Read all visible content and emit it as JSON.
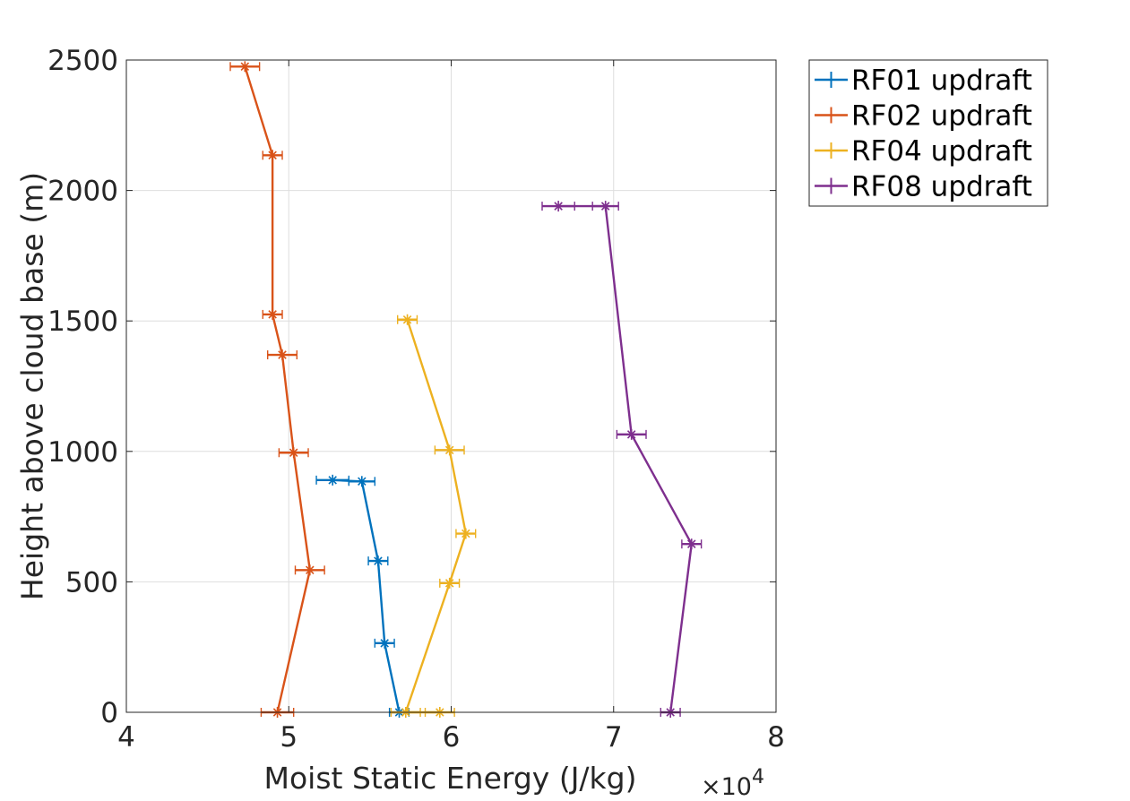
{
  "chart_data": {
    "type": "line",
    "title": "",
    "xlabel": "Moist Static Energy (J/kg)",
    "ylabel": "Height above cloud base (m)",
    "x_exponent_label": {
      "times": "×10",
      "power": "4"
    },
    "x_scale": 10000,
    "xlim": [
      40000,
      80000
    ],
    "ylim": [
      0,
      2500
    ],
    "xticks": [
      40000,
      50000,
      60000,
      70000,
      80000
    ],
    "xtick_labels": [
      "4",
      "5",
      "6",
      "7",
      "8"
    ],
    "yticks": [
      0,
      500,
      1000,
      1500,
      2000,
      2500
    ],
    "ytick_labels": [
      "0",
      "500",
      "1000",
      "1500",
      "2000",
      "2500"
    ],
    "grid": true,
    "legend_position": "outside top-right",
    "series": [
      {
        "name": "RF01 updraft",
        "color": "#0072BD",
        "points": [
          {
            "x": 56800,
            "y": 0,
            "err": 600
          },
          {
            "x": 55900,
            "y": 265,
            "err": 600
          },
          {
            "x": 55500,
            "y": 580,
            "err": 600
          },
          {
            "x": 54500,
            "y": 885,
            "err": 800
          },
          {
            "x": 52700,
            "y": 890,
            "err": 1000
          }
        ]
      },
      {
        "name": "RF02 updraft",
        "color": "#D95319",
        "points": [
          {
            "x": 49300,
            "y": 0,
            "err": 1000
          },
          {
            "x": 51300,
            "y": 545,
            "err": 900
          },
          {
            "x": 50300,
            "y": 995,
            "err": 900
          },
          {
            "x": 49600,
            "y": 1370,
            "err": 900
          },
          {
            "x": 49000,
            "y": 1525,
            "err": 600
          },
          {
            "x": 49000,
            "y": 2135,
            "err": 600
          },
          {
            "x": 47300,
            "y": 2475,
            "err": 900
          }
        ]
      },
      {
        "name": "RF04 updraft",
        "color": "#EDB120",
        "points": [
          {
            "x": 59300,
            "y": 0,
            "err": 900
          },
          {
            "x": 57200,
            "y": 0,
            "err": 900
          },
          {
            "x": 59900,
            "y": 495,
            "err": 600
          },
          {
            "x": 60900,
            "y": 685,
            "err": 600
          },
          {
            "x": 59900,
            "y": 1005,
            "err": 900
          },
          {
            "x": 57300,
            "y": 1505,
            "err": 600
          }
        ]
      },
      {
        "name": "RF08 updraft",
        "color": "#7E2F8E",
        "points": [
          {
            "x": 73500,
            "y": 0,
            "err": 600
          },
          {
            "x": 74800,
            "y": 645,
            "err": 600
          },
          {
            "x": 71100,
            "y": 1065,
            "err": 900
          },
          {
            "x": 69500,
            "y": 1940,
            "err": 800
          },
          {
            "x": 66600,
            "y": 1940,
            "err": 1000
          }
        ]
      }
    ]
  }
}
